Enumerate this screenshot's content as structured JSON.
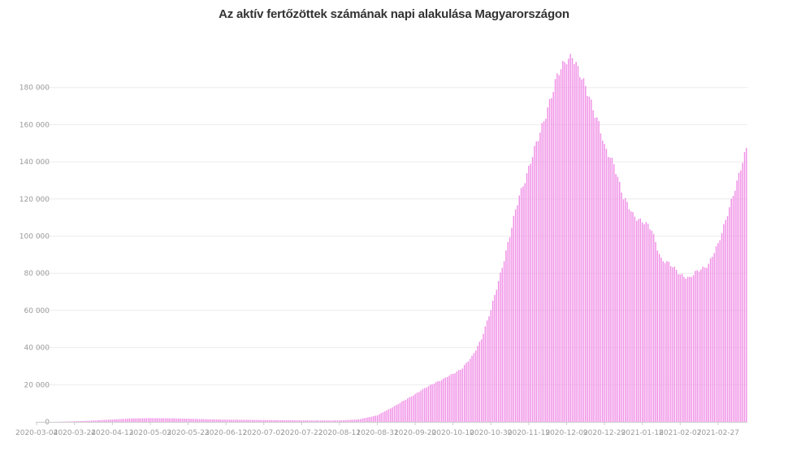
{
  "chart_data": {
    "type": "bar",
    "title": "Az aktív fertőzöttek számának napi alakulása Magyarországon",
    "xlabel": "",
    "ylabel": "",
    "ylim": [
      0,
      200000
    ],
    "grid": true,
    "bar_color": "#f08fe6",
    "start_date": "2020-03-04",
    "end_date": "2021-03-14",
    "x_tick_labels": [
      "2020-03-04",
      "2020-03-24",
      "2020-04-13",
      "2020-05-03",
      "2020-05-23",
      "2020-06-12",
      "2020-07-02",
      "2020-07-22",
      "2020-08-11",
      "2020-08-31",
      "2020-09-20",
      "2020-10-10",
      "2020-10-30",
      "2020-11-19",
      "2020-12-09",
      "2020-12-29",
      "2021-01-18",
      "2021-02-07",
      "2021-02-27"
    ],
    "y_tick_values": [
      0,
      20000,
      40000,
      60000,
      80000,
      100000,
      120000,
      140000,
      160000,
      180000
    ],
    "y_tick_labels": [
      "0",
      "20 000",
      "40 000",
      "60 000",
      "80 000",
      "100 000",
      "120 000",
      "140 000",
      "160 000",
      "180 000"
    ],
    "series": [
      {
        "points": [
          [
            "2020-03-04",
            0
          ],
          [
            "2020-03-14",
            30
          ],
          [
            "2020-03-24",
            300
          ],
          [
            "2020-04-03",
            700
          ],
          [
            "2020-04-13",
            1300
          ],
          [
            "2020-04-23",
            1800
          ],
          [
            "2020-05-03",
            2000
          ],
          [
            "2020-05-13",
            1900
          ],
          [
            "2020-05-23",
            1700
          ],
          [
            "2020-06-02",
            1400
          ],
          [
            "2020-06-12",
            1200
          ],
          [
            "2020-06-22",
            1100
          ],
          [
            "2020-07-02",
            1000
          ],
          [
            "2020-07-12",
            900
          ],
          [
            "2020-07-22",
            800
          ],
          [
            "2020-08-01",
            750
          ],
          [
            "2020-08-11",
            800
          ],
          [
            "2020-08-21",
            1300
          ],
          [
            "2020-08-31",
            3500
          ],
          [
            "2020-09-10",
            9000
          ],
          [
            "2020-09-20",
            15000
          ],
          [
            "2020-09-30",
            21000
          ],
          [
            "2020-10-05",
            23000
          ],
          [
            "2020-10-10",
            26000
          ],
          [
            "2020-10-15",
            29000
          ],
          [
            "2020-10-20",
            35000
          ],
          [
            "2020-10-25",
            45000
          ],
          [
            "2020-10-30",
            60000
          ],
          [
            "2020-11-04",
            80000
          ],
          [
            "2020-11-09",
            100000
          ],
          [
            "2020-11-14",
            122000
          ],
          [
            "2020-11-19",
            137000
          ],
          [
            "2020-11-24",
            152000
          ],
          [
            "2020-11-29",
            170000
          ],
          [
            "2020-12-04",
            185000
          ],
          [
            "2020-12-09",
            196000
          ],
          [
            "2020-12-12",
            198000
          ],
          [
            "2020-12-16",
            186000
          ],
          [
            "2020-12-21",
            176000
          ],
          [
            "2020-12-26",
            160000
          ],
          [
            "2020-12-29",
            147000
          ],
          [
            "2021-01-03",
            140000
          ],
          [
            "2021-01-08",
            120000
          ],
          [
            "2021-01-13",
            112000
          ],
          [
            "2021-01-18",
            108000
          ],
          [
            "2021-01-23",
            103000
          ],
          [
            "2021-01-28",
            88000
          ],
          [
            "2021-02-02",
            84000
          ],
          [
            "2021-02-07",
            80000
          ],
          [
            "2021-02-12",
            77000
          ],
          [
            "2021-02-17",
            82000
          ],
          [
            "2021-02-22",
            85000
          ],
          [
            "2021-02-27",
            95000
          ],
          [
            "2021-03-04",
            113000
          ],
          [
            "2021-03-09",
            128000
          ],
          [
            "2021-03-14",
            148000
          ]
        ]
      }
    ]
  }
}
